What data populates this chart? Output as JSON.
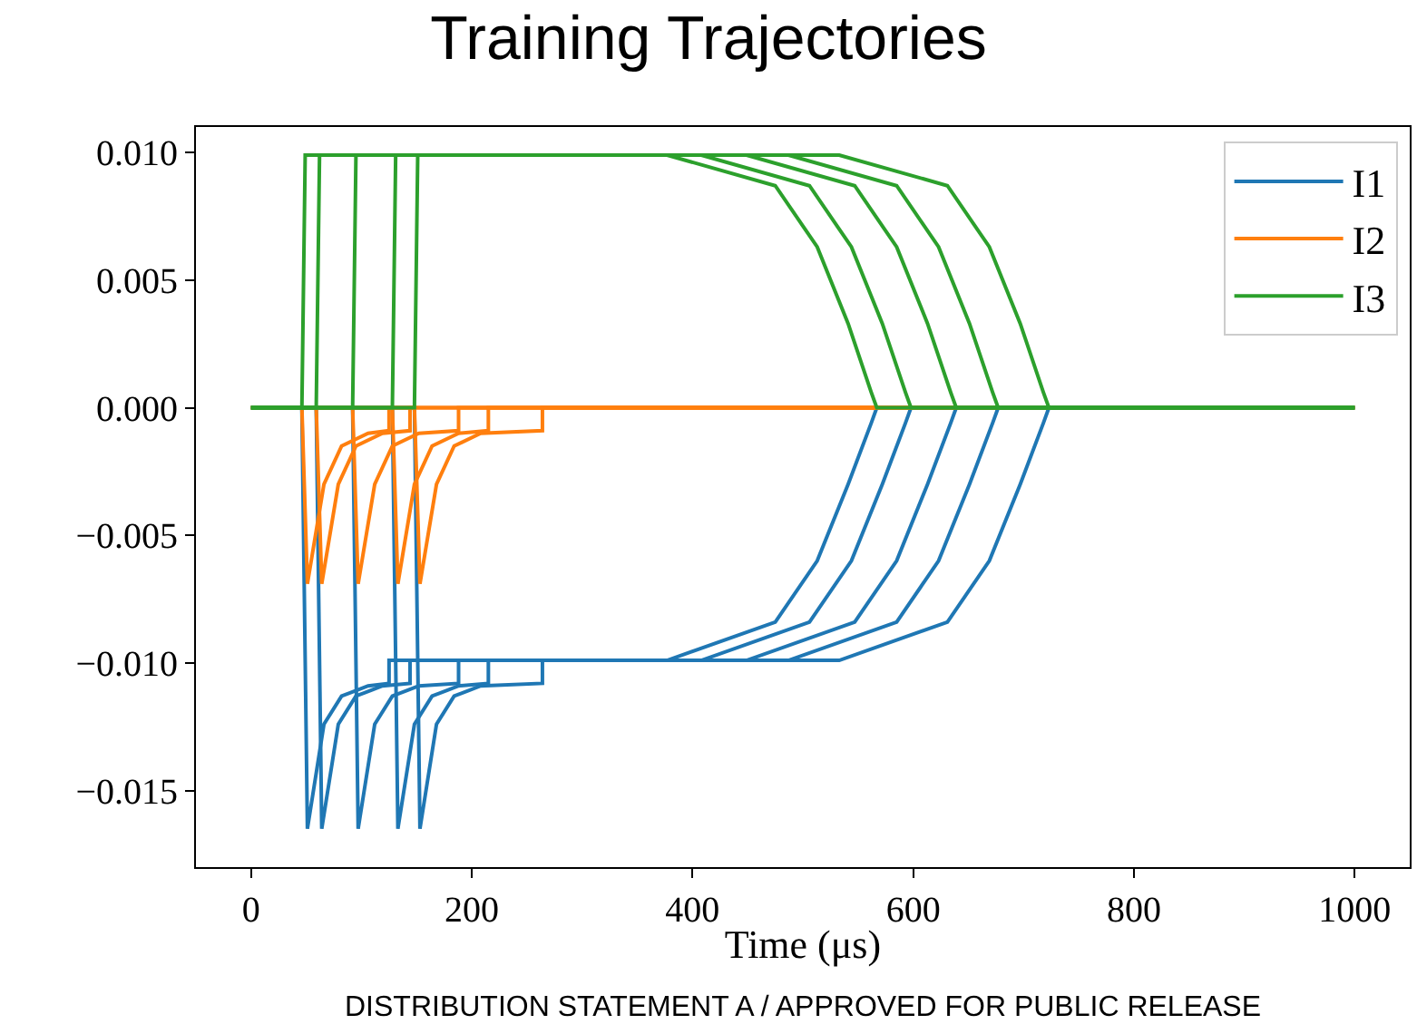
{
  "chart_data": {
    "type": "line",
    "title": "Training Trajectories",
    "xlabel": "Time (μs)",
    "xlim": [
      -50,
      1050
    ],
    "xticks": [
      0,
      200,
      400,
      600,
      800,
      1000
    ],
    "ylim": [
      -0.018,
      0.011
    ],
    "yticks": [
      {
        "value": -0.015,
        "label": "−0.015"
      },
      {
        "value": -0.01,
        "label": "−0.010"
      },
      {
        "value": -0.005,
        "label": "−0.005"
      },
      {
        "value": 0,
        "label": "0.000"
      },
      {
        "value": 0.005,
        "label": "0.005"
      },
      {
        "value": 0.01,
        "label": "0.010"
      }
    ],
    "legend": "top right",
    "marker": "none",
    "line_style": "solid",
    "annotations": [
      "DISTRIBUTION STATEMENT A / APPROVED FOR PUBLIC RELEASE"
    ],
    "series": [
      {
        "name": "I1",
        "color": "#1f77b4",
        "x": [
          0,
          46,
          51,
          66,
          82,
          106,
          125,
          125,
          377,
          475,
          513,
          541,
          562,
          567,
          1000
        ],
        "values": [
          0,
          0,
          -0.0165,
          -0.0124,
          -0.0113,
          -0.0109,
          -0.0108,
          -0.0099,
          -0.0099,
          -0.0084,
          -0.006,
          -0.003,
          -0.0006,
          0,
          0
        ]
      },
      {
        "color": "#1f77b4",
        "x": [
          0,
          59,
          64,
          79,
          95,
          119,
          144,
          144,
          408,
          506,
          544,
          572,
          593,
          598,
          1000
        ],
        "values": [
          0,
          0,
          -0.0165,
          -0.0124,
          -0.0113,
          -0.0109,
          -0.0108,
          -0.0099,
          -0.0099,
          -0.0084,
          -0.006,
          -0.003,
          -0.0006,
          0,
          0
        ]
      },
      {
        "color": "#1f77b4",
        "x": [
          0,
          92,
          97,
          112,
          128,
          152,
          188,
          188,
          449,
          547,
          585,
          613,
          634,
          639,
          1000
        ],
        "values": [
          0,
          0,
          -0.0165,
          -0.0124,
          -0.0113,
          -0.0109,
          -0.0108,
          -0.0099,
          -0.0099,
          -0.0084,
          -0.006,
          -0.003,
          -0.0006,
          0,
          0
        ]
      },
      {
        "color": "#1f77b4",
        "x": [
          0,
          128,
          133,
          148,
          164,
          188,
          215,
          215,
          487,
          585,
          623,
          651,
          672,
          677,
          1000
        ],
        "values": [
          0,
          0,
          -0.0165,
          -0.0124,
          -0.0113,
          -0.0109,
          -0.0108,
          -0.0099,
          -0.0099,
          -0.0084,
          -0.006,
          -0.003,
          -0.0006,
          0,
          0
        ]
      },
      {
        "color": "#1f77b4",
        "x": [
          0,
          148,
          153,
          168,
          184,
          208,
          264,
          264,
          533,
          631,
          669,
          697,
          718,
          723,
          1000
        ],
        "values": [
          0,
          0,
          -0.0165,
          -0.0124,
          -0.0113,
          -0.0109,
          -0.0108,
          -0.0099,
          -0.0099,
          -0.0084,
          -0.006,
          -0.003,
          -0.0006,
          0,
          0
        ]
      },
      {
        "name": "I2",
        "color": "#ff7f0e",
        "x": [
          0,
          46,
          51,
          66,
          82,
          106,
          125,
          125,
          1000
        ],
        "values": [
          0,
          0,
          -0.0069,
          -0.003,
          -0.0015,
          -0.001,
          -0.0009,
          0,
          0
        ]
      },
      {
        "color": "#ff7f0e",
        "x": [
          0,
          59,
          64,
          79,
          95,
          119,
          144,
          144,
          1000
        ],
        "values": [
          0,
          0,
          -0.0069,
          -0.003,
          -0.0015,
          -0.001,
          -0.0009,
          0,
          0
        ]
      },
      {
        "color": "#ff7f0e",
        "x": [
          0,
          92,
          97,
          112,
          128,
          152,
          188,
          188,
          1000
        ],
        "values": [
          0,
          0,
          -0.0069,
          -0.003,
          -0.0015,
          -0.001,
          -0.0009,
          0,
          0
        ]
      },
      {
        "color": "#ff7f0e",
        "x": [
          0,
          128,
          133,
          148,
          164,
          188,
          215,
          215,
          1000
        ],
        "values": [
          0,
          0,
          -0.0069,
          -0.003,
          -0.0015,
          -0.001,
          -0.0009,
          0,
          0
        ]
      },
      {
        "color": "#ff7f0e",
        "x": [
          0,
          148,
          153,
          168,
          184,
          208,
          264,
          264,
          1000
        ],
        "values": [
          0,
          0,
          -0.0069,
          -0.003,
          -0.0015,
          -0.001,
          -0.0009,
          0,
          0
        ]
      },
      {
        "name": "I3",
        "color": "#2ca02c",
        "x": [
          0,
          46,
          49,
          377,
          475,
          513,
          541,
          562,
          567,
          1000
        ],
        "values": [
          0,
          0,
          0.0099,
          0.0099,
          0.0087,
          0.0063,
          0.0033,
          0.0006,
          0,
          0
        ]
      },
      {
        "color": "#2ca02c",
        "x": [
          0,
          59,
          62,
          408,
          506,
          544,
          572,
          593,
          598,
          1000
        ],
        "values": [
          0,
          0,
          0.0099,
          0.0099,
          0.0087,
          0.0063,
          0.0033,
          0.0006,
          0,
          0
        ]
      },
      {
        "color": "#2ca02c",
        "x": [
          0,
          92,
          95,
          449,
          547,
          585,
          613,
          634,
          639,
          1000
        ],
        "values": [
          0,
          0,
          0.0099,
          0.0099,
          0.0087,
          0.0063,
          0.0033,
          0.0006,
          0,
          0
        ]
      },
      {
        "color": "#2ca02c",
        "x": [
          0,
          128,
          131,
          487,
          585,
          623,
          651,
          672,
          677,
          1000
        ],
        "values": [
          0,
          0,
          0.0099,
          0.0099,
          0.0087,
          0.0063,
          0.0033,
          0.0006,
          0,
          0
        ]
      },
      {
        "color": "#2ca02c",
        "x": [
          0,
          148,
          151,
          533,
          631,
          669,
          697,
          718,
          723,
          1000
        ],
        "values": [
          0,
          0,
          0.0099,
          0.0099,
          0.0087,
          0.0063,
          0.0033,
          0.0006,
          0,
          0
        ]
      }
    ]
  }
}
